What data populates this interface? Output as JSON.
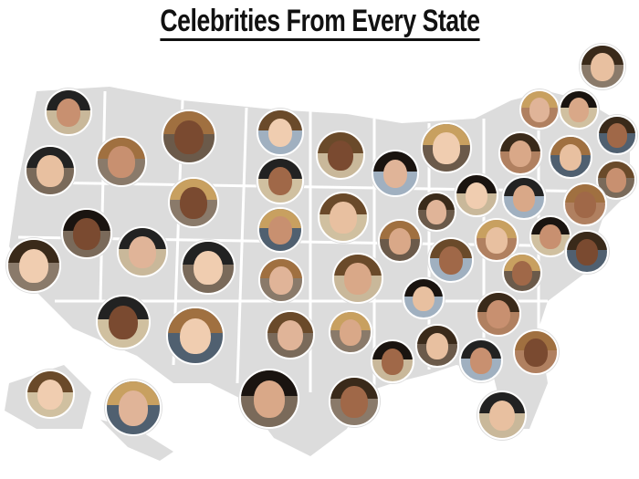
{
  "title": "Celebrities From Every State",
  "colors": {
    "map": "#d9d9d9",
    "title": "#111111",
    "border": "#ffffff"
  },
  "portrait_count": 50
}
